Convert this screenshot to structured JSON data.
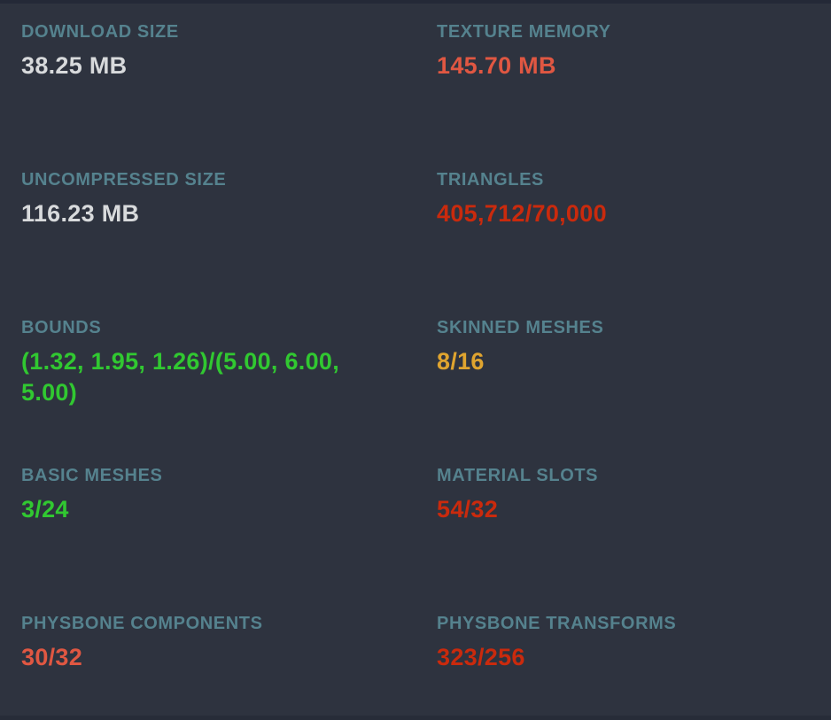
{
  "colors": {
    "background": "#2e333f",
    "label": "#55828e",
    "neutral": "#d8dadc",
    "good": "#31c831",
    "medium": "#dfa42f",
    "warning": "#e05742",
    "error": "#ca2a0d"
  },
  "stats": [
    {
      "label": "DOWNLOAD SIZE",
      "value": "38.25 MB",
      "status": "neutral"
    },
    {
      "label": "TEXTURE MEMORY",
      "value": "145.70 MB",
      "status": "warning"
    },
    {
      "label": "UNCOMPRESSED SIZE",
      "value": "116.23 MB",
      "status": "neutral"
    },
    {
      "label": "TRIANGLES",
      "value": "405,712/70,000",
      "status": "error"
    },
    {
      "label": "BOUNDS",
      "value": "(1.32, 1.95, 1.26)/(5.00, 6.00,\n5.00)",
      "status": "good"
    },
    {
      "label": "SKINNED MESHES",
      "value": "8/16",
      "status": "medium"
    },
    {
      "label": "BASIC MESHES",
      "value": "3/24",
      "status": "good"
    },
    {
      "label": "MATERIAL SLOTS",
      "value": "54/32",
      "status": "error"
    },
    {
      "label": "PHYSBONE COMPONENTS",
      "value": "30/32",
      "status": "warning"
    },
    {
      "label": "PHYSBONE TRANSFORMS",
      "value": "323/256",
      "status": "error"
    }
  ]
}
